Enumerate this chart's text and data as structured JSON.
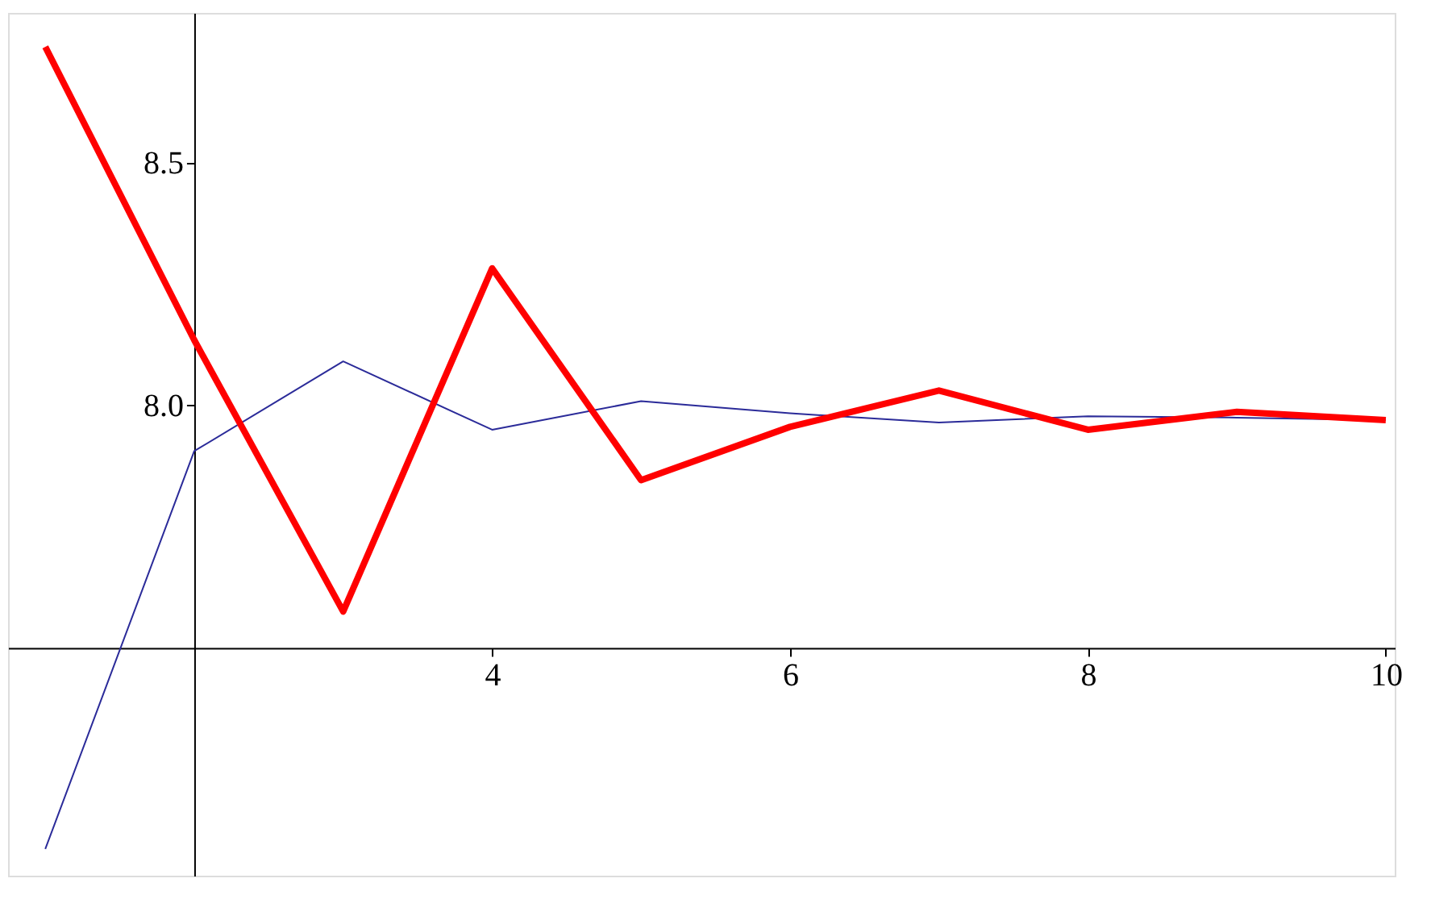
{
  "chart_data": {
    "type": "line",
    "x": [
      1,
      2,
      3,
      4,
      5,
      6,
      7,
      8,
      9,
      10
    ],
    "series": [
      {
        "color": "#2b2b99",
        "values": [
          7.085,
          7.906,
          8.091,
          7.95,
          8.009,
          7.984,
          7.965,
          7.978,
          7.975,
          7.97
        ]
      },
      {
        "color": "#ff0000",
        "values": [
          8.74,
          8.135,
          7.575,
          8.283,
          7.846,
          7.956,
          8.031,
          7.95,
          7.987,
          7.97
        ]
      }
    ],
    "xlim": [
      0.75,
      10.06
    ],
    "ylim": [
      7.03,
      8.81
    ],
    "xticks": [
      4,
      6,
      8,
      10
    ],
    "yticks": [
      {
        "value": 8,
        "label": "8.0"
      },
      8.5
    ],
    "grid": false,
    "marker": "none",
    "line_style": "solid"
  }
}
